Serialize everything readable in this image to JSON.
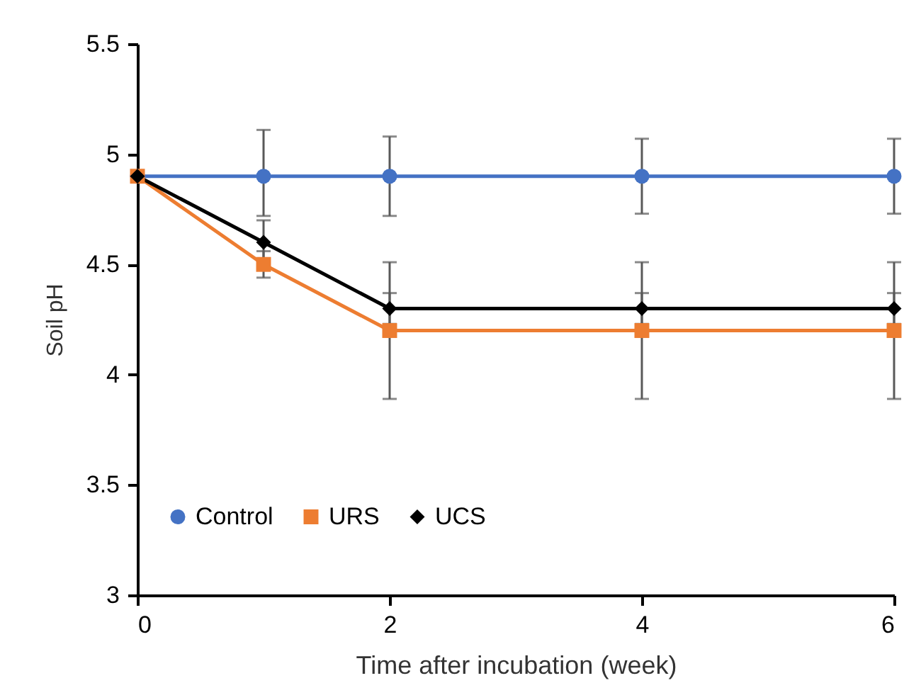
{
  "chart_data": {
    "type": "line",
    "xlabel": "Time after incubation (week)",
    "ylabel": "Soil pH",
    "x": [
      0,
      1,
      2,
      4,
      6
    ],
    "series": [
      {
        "name": "Control",
        "color": "#4472c4",
        "marker": "circle",
        "values": [
          4.9,
          4.9,
          4.9,
          4.9,
          4.9
        ],
        "errors": [
          null,
          [
            4.72,
            5.11
          ],
          0.18,
          0.17,
          0.17
        ]
      },
      {
        "name": "URS",
        "color": "#ed7d31",
        "marker": "square",
        "values": [
          4.9,
          4.5,
          4.2,
          4.2,
          4.2
        ],
        "errors": [
          null,
          0.06,
          0.31,
          0.31,
          0.31
        ]
      },
      {
        "name": "UCS",
        "color": "#000000",
        "marker": "diamond",
        "values": [
          4.9,
          4.6,
          4.3,
          4.3,
          4.3
        ],
        "errors": [
          null,
          0.1,
          0.07,
          0.07,
          0.07
        ]
      }
    ],
    "xlim": [
      0,
      6
    ],
    "xticks": [
      0,
      2,
      4,
      6
    ],
    "ylim": [
      3,
      5.5
    ],
    "yticks": [
      3,
      3.5,
      4,
      4.5,
      5,
      5.5
    ],
    "grid": false,
    "legend": "bottom"
  }
}
